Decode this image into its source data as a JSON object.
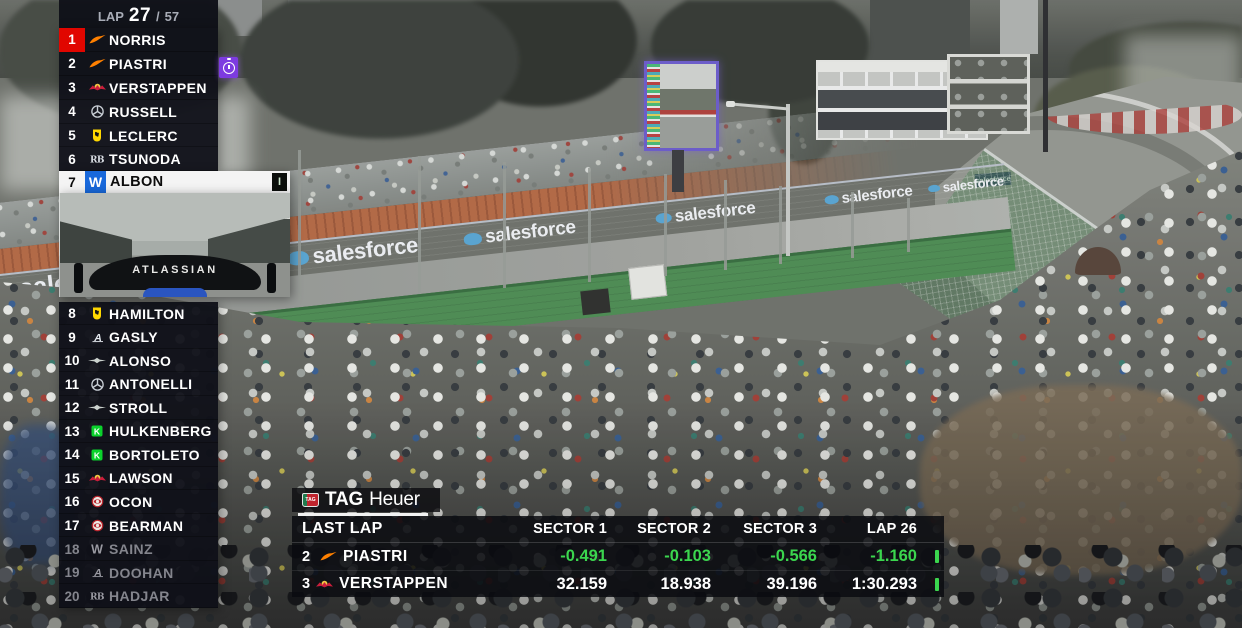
{
  "lap_counter": {
    "label": "LAP",
    "current": "27",
    "separator": "/",
    "total": "57"
  },
  "timing_tower": {
    "rows": [
      {
        "pos": "1",
        "driver": "NORRIS",
        "team": "mclaren",
        "state": "leader"
      },
      {
        "pos": "2",
        "driver": "PIASTRI",
        "team": "mclaren",
        "state": "normal",
        "has_fastest_lap_badge": true
      },
      {
        "pos": "3",
        "driver": "VERSTAPPEN",
        "team": "redbull",
        "state": "normal"
      },
      {
        "pos": "4",
        "driver": "RUSSELL",
        "team": "mercedes",
        "state": "normal"
      },
      {
        "pos": "5",
        "driver": "LECLERC",
        "team": "ferrari",
        "state": "normal"
      },
      {
        "pos": "6",
        "driver": "TSUNODA",
        "team": "racingbulls",
        "state": "normal"
      },
      {
        "pos": "7",
        "driver": "ALBON",
        "team": "williams",
        "state": "selected",
        "logo_letter": "W",
        "indicator": "I"
      },
      {
        "pos": "8",
        "driver": "HAMILTON",
        "team": "ferrari",
        "state": "normal"
      },
      {
        "pos": "9",
        "driver": "GASLY",
        "team": "alpine",
        "state": "normal"
      },
      {
        "pos": "10",
        "driver": "ALONSO",
        "team": "astonmartin",
        "state": "normal"
      },
      {
        "pos": "11",
        "driver": "ANTONELLI",
        "team": "mercedes",
        "state": "normal"
      },
      {
        "pos": "12",
        "driver": "STROLL",
        "team": "astonmartin",
        "state": "normal"
      },
      {
        "pos": "13",
        "driver": "HULKENBERG",
        "team": "kicksauber",
        "state": "normal"
      },
      {
        "pos": "14",
        "driver": "BORTOLETO",
        "team": "kicksauber",
        "state": "normal"
      },
      {
        "pos": "15",
        "driver": "LAWSON",
        "team": "redbull",
        "state": "normal"
      },
      {
        "pos": "16",
        "driver": "OCON",
        "team": "haas",
        "state": "normal"
      },
      {
        "pos": "17",
        "driver": "BEARMAN",
        "team": "haas",
        "state": "normal"
      },
      {
        "pos": "18",
        "driver": "SAINZ",
        "team": "williams",
        "state": "retired"
      },
      {
        "pos": "19",
        "driver": "DOOHAN",
        "team": "alpine",
        "state": "retired"
      },
      {
        "pos": "20",
        "driver": "HADJAR",
        "team": "racingbulls",
        "state": "retired"
      }
    ]
  },
  "onboard_camera": {
    "rear_wing_text": "ATLASSIAN"
  },
  "fastest_lap_badge": {
    "icon": "stopwatch-icon",
    "color": "#7D3BE0",
    "next_to_pos": "2"
  },
  "sponsor_tab": {
    "badge_text": "TAG",
    "brand_bold": "TAG",
    "brand_light": "Heuer"
  },
  "last_lap_panel": {
    "title": "LAST LAP",
    "columns": [
      "SECTOR 1",
      "SECTOR 2",
      "SECTOR 3",
      "LAP 26"
    ],
    "rows": [
      {
        "pos": "2",
        "driver": "PIASTRI",
        "team": "mclaren",
        "sector1": "-0.491",
        "sector2": "-0.103",
        "sector3": "-0.566",
        "lap": "-1.160",
        "values_are_deltas": true
      },
      {
        "pos": "3",
        "driver": "VERSTAPPEN",
        "team": "redbull",
        "sector1": "32.159",
        "sector2": "18.938",
        "sector3": "39.196",
        "lap": "1:30.293",
        "values_are_deltas": false
      }
    ]
  },
  "scene": {
    "advertiser": "salesforce",
    "banners": [
      "salesforce",
      "salesforce",
      "salesforce",
      "salesforce",
      "salesforce",
      "salesforce",
      "salesforce"
    ]
  },
  "colors": {
    "leader_red": "#E10600",
    "selected_row_bg": "#F4F4F4",
    "delta_green": "#3BD64E",
    "fastest_lap_purple": "#7D3BE0",
    "tower_bg": "#0F1018",
    "retired_text": "#84858D",
    "williams_blue": "#1868DB"
  },
  "team_colors": {
    "mclaren": "#FF8000",
    "redbull_red": "#CC1E3C",
    "redbull_yellow": "#F2C744",
    "mercedes": "#C9CFD6",
    "ferrari": "#FFD800",
    "racingbulls": "#D8DCE2",
    "williams": "#FFFFFF",
    "alpine": "#E6EAF0",
    "astonmartin": "#CBD2CE",
    "kicksauber": "#0BD22C",
    "haas": "#B8242C"
  }
}
